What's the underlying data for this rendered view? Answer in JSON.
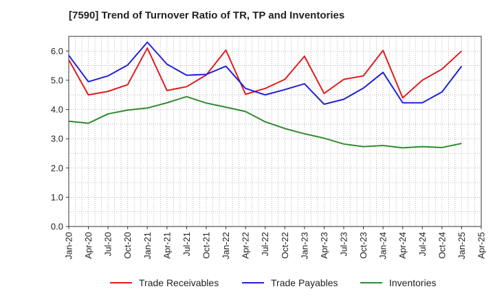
{
  "chart_data": {
    "type": "line",
    "title": "[7590]  Trend of Turnover Ratio of TR, TP and Inventories",
    "xlabel": "",
    "ylabel": "",
    "x": [
      "Jan-20",
      "Apr-20",
      "Jul-20",
      "Oct-20",
      "Jan-21",
      "Apr-21",
      "Jul-21",
      "Oct-21",
      "Jan-22",
      "Apr-22",
      "Jul-22",
      "Oct-22",
      "Jan-23",
      "Apr-23",
      "Jul-23",
      "Oct-23",
      "Jan-24",
      "Apr-24",
      "Jul-24",
      "Oct-24",
      "Jan-25"
    ],
    "x_ticks": [
      "Jan-20",
      "Apr-20",
      "Jul-20",
      "Oct-20",
      "Jan-21",
      "Apr-21",
      "Jul-21",
      "Oct-21",
      "Jan-22",
      "Apr-22",
      "Jul-22",
      "Oct-22",
      "Jan-23",
      "Apr-23",
      "Jul-23",
      "Oct-23",
      "Jan-24",
      "Apr-24",
      "Jul-24",
      "Oct-24",
      "Jan-25",
      "Apr-25"
    ],
    "y_ticks": [
      "0.0",
      "1.0",
      "2.0",
      "3.0",
      "4.0",
      "5.0",
      "6.0"
    ],
    "ylim": [
      0,
      6.5
    ],
    "grid": true,
    "legend_position": "bottom",
    "series": [
      {
        "name": "Trade Receivables",
        "color": "#e31a1c",
        "values": [
          5.7,
          4.5,
          4.62,
          4.85,
          6.1,
          4.65,
          4.78,
          5.18,
          6.03,
          4.52,
          4.72,
          5.03,
          5.82,
          4.55,
          5.03,
          5.15,
          6.02,
          4.4,
          5.0,
          5.38,
          6.0
        ]
      },
      {
        "name": "Trade Payables",
        "color": "#1f1fd6",
        "values": [
          5.85,
          4.95,
          5.15,
          5.52,
          6.3,
          5.55,
          5.17,
          5.2,
          5.48,
          4.72,
          4.5,
          4.68,
          4.88,
          4.18,
          4.35,
          4.73,
          5.27,
          4.23,
          4.23,
          4.6,
          5.48
        ]
      },
      {
        "name": "Inventories",
        "color": "#2e8b2e",
        "values": [
          3.6,
          3.53,
          3.85,
          3.98,
          4.05,
          4.23,
          4.44,
          4.22,
          4.08,
          3.93,
          3.58,
          3.35,
          3.17,
          3.02,
          2.82,
          2.73,
          2.77,
          2.69,
          2.73,
          2.7,
          2.84
        ]
      }
    ]
  }
}
